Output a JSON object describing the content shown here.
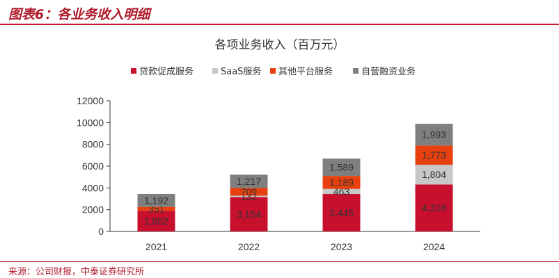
{
  "figure": {
    "title": "图表6：各业务收入明细",
    "source": "来源：公司财报，中泰证券研究所"
  },
  "chart_data": {
    "type": "bar",
    "stacked": true,
    "title": "各项业务收入（百万元）",
    "categories": [
      "2021",
      "2022",
      "2023",
      "2024"
    ],
    "series": [
      {
        "name": "贷款促成服务",
        "color": "#c8102e",
        "values": [
          1902,
          3154,
          3445,
          4318
        ]
      },
      {
        "name": "SaaS服务",
        "color": "#c8c8c8",
        "values": [
          3,
          132,
          463,
          1804
        ]
      },
      {
        "name": "其他平台服务",
        "color": "#e8410f",
        "values": [
          351,
          709,
          1189,
          1773
        ]
      },
      {
        "name": "自营融资业务",
        "color": "#7f7f7f",
        "values": [
          1192,
          1217,
          1589,
          1993
        ]
      }
    ],
    "data_labels": [
      [
        "1,902",
        "3,154",
        "3,445",
        "4,318"
      ],
      [
        "",
        "132",
        "463",
        "1,804"
      ],
      [
        "351",
        "709",
        "1,189",
        "1,773"
      ],
      [
        "1,192",
        "1,217",
        "1,589",
        "1,993"
      ]
    ],
    "ylim": [
      0,
      12000
    ],
    "yticks": [
      0,
      2000,
      4000,
      6000,
      8000,
      10000,
      12000
    ],
    "legend": "top",
    "grid": false
  }
}
